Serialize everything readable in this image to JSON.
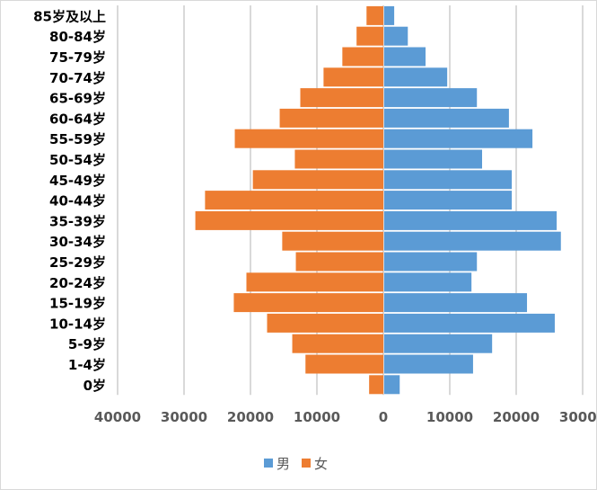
{
  "chart_data": {
    "type": "bar",
    "orientation": "horizontal",
    "subtype": "population-pyramid",
    "title": "",
    "categories": [
      "85岁及以上",
      "80-84岁",
      "75-79岁",
      "70-74岁",
      "65-69岁",
      "60-64岁",
      "55-59岁",
      "50-54岁",
      "45-49岁",
      "40-44岁",
      "35-39岁",
      "30-34岁",
      "25-29岁",
      "20-24岁",
      "15-19岁",
      "10-14岁",
      "5-9岁",
      "1-4岁",
      "0岁"
    ],
    "series": [
      {
        "name": "男",
        "color": "#5b9bd5",
        "side": "right",
        "values": [
          1500,
          3550,
          6220,
          9480,
          13950,
          18770,
          22310,
          14730,
          19200,
          19200,
          25960,
          26590,
          13950,
          13130,
          21490,
          25670,
          16240,
          13370,
          2330
        ]
      },
      {
        "name": "女",
        "color": "#ed7d31",
        "side": "left",
        "values": [
          2530,
          4030,
          6170,
          9000,
          12500,
          15600,
          22360,
          13320,
          19640,
          26840,
          28300,
          15220,
          13170,
          20610,
          22510,
          17500,
          13710,
          11720,
          2140
        ]
      }
    ],
    "xlim": [
      -40000,
      30000
    ],
    "xticks": [
      -40000,
      -30000,
      -20000,
      -10000,
      0,
      10000,
      20000,
      30000
    ],
    "xtick_labels": [
      "40000",
      "30000",
      "20000",
      "10000",
      "0",
      "10000",
      "20000",
      "30000"
    ],
    "grid": true,
    "legend_position": "bottom"
  }
}
